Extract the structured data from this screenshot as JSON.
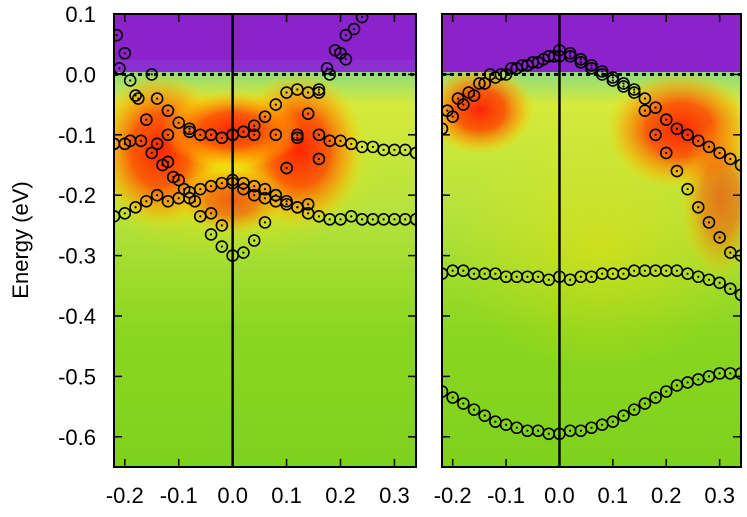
{
  "chart_data": [
    {
      "type": "scatter",
      "panel": "left",
      "ylabel": "Energy (eV)",
      "xlim": [
        -0.22,
        0.34
      ],
      "ylim": [
        -0.65,
        0.1
      ],
      "x_ticks": [
        -0.2,
        -0.1,
        0.0,
        0.1,
        0.2,
        0.3
      ],
      "x_tick_labels": [
        "-0.2",
        "-0.1",
        "0.0",
        "0.1",
        "0.2",
        "0.3"
      ],
      "y_ticks": [
        0.1,
        0.0,
        -0.1,
        -0.2,
        -0.3,
        -0.4,
        -0.5,
        -0.6
      ],
      "y_tick_labels": [
        "0.1",
        "0.0",
        "-0.1",
        "-0.2",
        "-0.3",
        "-0.4",
        "-0.5",
        "-0.6"
      ],
      "reference_lines": {
        "vertical_x": 0.0,
        "fermi_level_y": 0.0,
        "fermi_style": "dotted"
      },
      "background": "spectral intensity map: purple above 0.0 eV, red/orange high-intensity regions near -0.03 to -0.25 eV, yellow-green elsewhere",
      "series": [
        {
          "values": [
            [
              -0.215,
              0.065
            ],
            [
              -0.2,
              0.035
            ],
            [
              -0.18,
              -0.035
            ],
            [
              -0.16,
              -0.075
            ],
            [
              -0.14,
              -0.115
            ],
            [
              -0.12,
              -0.145
            ],
            [
              -0.1,
              -0.175
            ],
            [
              -0.08,
              -0.205
            ],
            [
              -0.06,
              -0.235
            ],
            [
              -0.04,
              -0.265
            ],
            [
              -0.02,
              -0.285
            ],
            [
              0.0,
              -0.3
            ],
            [
              0.02,
              -0.295
            ],
            [
              0.04,
              -0.275
            ],
            [
              0.06,
              -0.245
            ],
            [
              0.08,
              -0.2
            ],
            [
              0.1,
              -0.155
            ],
            [
              0.12,
              -0.105
            ],
            [
              0.14,
              -0.065
            ],
            [
              0.16,
              -0.03
            ],
            [
              0.175,
              0.01
            ],
            [
              0.19,
              0.04
            ],
            [
              0.21,
              0.065
            ],
            [
              0.225,
              0.075
            ],
            [
              0.24,
              0.095
            ]
          ]
        },
        {
          "values": [
            [
              -0.21,
              0.01
            ],
            [
              -0.19,
              -0.01
            ],
            [
              -0.175,
              -0.04
            ],
            [
              -0.15,
              0.0
            ],
            [
              -0.14,
              -0.04
            ],
            [
              -0.12,
              -0.06
            ],
            [
              -0.1,
              -0.08
            ],
            [
              -0.08,
              -0.09
            ],
            [
              -0.06,
              -0.1
            ],
            [
              -0.04,
              -0.1
            ],
            [
              -0.02,
              -0.105
            ],
            [
              0.0,
              -0.1
            ],
            [
              0.02,
              -0.095
            ],
            [
              0.04,
              -0.085
            ],
            [
              0.06,
              -0.07
            ],
            [
              0.08,
              -0.05
            ],
            [
              0.1,
              -0.03
            ],
            [
              0.12,
              -0.025
            ],
            [
              0.14,
              -0.03
            ],
            [
              0.16,
              -0.025
            ],
            [
              0.18,
              0.0
            ],
            [
              0.2,
              0.035
            ],
            [
              0.21,
              0.025
            ]
          ]
        },
        {
          "values": [
            [
              -0.22,
              -0.115
            ],
            [
              -0.2,
              -0.115
            ],
            [
              -0.19,
              -0.11
            ],
            [
              -0.17,
              -0.11
            ],
            [
              -0.15,
              -0.13
            ],
            [
              -0.13,
              -0.15
            ],
            [
              -0.11,
              -0.17
            ],
            [
              -0.09,
              -0.19
            ],
            [
              -0.07,
              -0.21
            ],
            [
              -0.04,
              -0.23
            ],
            [
              -0.02,
              -0.25
            ],
            [
              0.0,
              -0.18
            ],
            [
              0.02,
              -0.19
            ],
            [
              0.04,
              -0.2
            ],
            [
              0.06,
              -0.205
            ],
            [
              0.08,
              -0.21
            ],
            [
              0.1,
              -0.215
            ],
            [
              0.12,
              -0.22
            ],
            [
              0.14,
              -0.215
            ],
            [
              0.16,
              -0.14
            ],
            [
              0.18,
              -0.11
            ],
            [
              0.2,
              -0.11
            ],
            [
              0.22,
              -0.115
            ],
            [
              0.24,
              -0.12
            ],
            [
              0.26,
              -0.12
            ],
            [
              0.28,
              -0.125
            ],
            [
              0.3,
              -0.125
            ],
            [
              0.32,
              -0.125
            ],
            [
              0.34,
              -0.13
            ]
          ]
        },
        {
          "values": [
            [
              -0.22,
              -0.235
            ],
            [
              -0.2,
              -0.23
            ],
            [
              -0.18,
              -0.22
            ],
            [
              -0.16,
              -0.21
            ],
            [
              -0.14,
              -0.2
            ],
            [
              -0.12,
              -0.21
            ],
            [
              -0.1,
              -0.205
            ],
            [
              -0.08,
              -0.195
            ],
            [
              -0.06,
              -0.19
            ],
            [
              -0.04,
              -0.185
            ],
            [
              -0.02,
              -0.18
            ],
            [
              0.0,
              -0.175
            ],
            [
              0.02,
              -0.18
            ],
            [
              0.04,
              -0.185
            ],
            [
              0.06,
              -0.19
            ],
            [
              0.08,
              -0.2
            ],
            [
              0.1,
              -0.21
            ],
            [
              0.12,
              -0.22
            ],
            [
              0.14,
              -0.23
            ],
            [
              0.16,
              -0.235
            ],
            [
              0.18,
              -0.24
            ],
            [
              0.2,
              -0.24
            ],
            [
              0.22,
              -0.235
            ],
            [
              0.24,
              -0.24
            ],
            [
              0.26,
              -0.24
            ],
            [
              0.28,
              -0.24
            ],
            [
              0.3,
              -0.24
            ],
            [
              0.32,
              -0.24
            ],
            [
              0.34,
              -0.24
            ]
          ]
        },
        {
          "values": [
            [
              -0.12,
              -0.1
            ],
            [
              -0.08,
              -0.095
            ],
            [
              -0.04,
              -0.1
            ],
            [
              0.0,
              -0.1
            ],
            [
              0.04,
              -0.1
            ],
            [
              0.08,
              -0.1
            ],
            [
              0.12,
              -0.1
            ],
            [
              0.16,
              -0.1
            ]
          ]
        }
      ]
    },
    {
      "type": "scatter",
      "panel": "right",
      "xlim": [
        -0.22,
        0.34
      ],
      "ylim": [
        -0.65,
        0.1
      ],
      "x_ticks": [
        -0.2,
        -0.1,
        0.0,
        0.1,
        0.2,
        0.3
      ],
      "x_tick_labels": [
        "-0.2",
        "-0.1",
        "0.0",
        "0.1",
        "0.2",
        "0.3"
      ],
      "reference_lines": {
        "vertical_x": 0.0,
        "fermi_level_y": 0.0,
        "fermi_style": "dotted"
      },
      "background": "spectral intensity map: purple above 0.0 eV, red/orange high-intensity bands near the Fermi level edges, yellow-green elsewhere",
      "series": [
        {
          "values": [
            [
              -0.21,
              -0.06
            ],
            [
              -0.19,
              -0.04
            ],
            [
              -0.17,
              -0.03
            ],
            [
              -0.15,
              -0.015
            ],
            [
              -0.13,
              0.0
            ],
            [
              -0.11,
              0.0
            ],
            [
              -0.09,
              0.01
            ],
            [
              -0.07,
              0.015
            ],
            [
              -0.05,
              0.02
            ],
            [
              -0.03,
              0.025
            ],
            [
              -0.01,
              0.03
            ],
            [
              0.0,
              0.03
            ],
            [
              0.02,
              0.03
            ],
            [
              0.04,
              0.025
            ],
            [
              0.06,
              0.015
            ],
            [
              0.08,
              0.005
            ],
            [
              0.1,
              -0.005
            ],
            [
              0.12,
              -0.015
            ],
            [
              0.14,
              -0.025
            ],
            [
              0.16,
              -0.04
            ],
            [
              0.18,
              -0.055
            ],
            [
              0.2,
              -0.075
            ],
            [
              0.22,
              -0.09
            ],
            [
              0.24,
              -0.1
            ],
            [
              0.26,
              -0.11
            ],
            [
              0.28,
              -0.12
            ],
            [
              0.3,
              -0.13
            ],
            [
              0.32,
              -0.14
            ],
            [
              0.34,
              -0.15
            ]
          ]
        },
        {
          "values": [
            [
              -0.22,
              -0.09
            ],
            [
              -0.2,
              -0.07
            ],
            [
              -0.18,
              -0.05
            ],
            [
              -0.16,
              -0.035
            ],
            [
              -0.14,
              -0.015
            ],
            [
              -0.12,
              -0.005
            ],
            [
              -0.1,
              0.0
            ],
            [
              -0.08,
              0.01
            ],
            [
              -0.06,
              0.015
            ],
            [
              -0.04,
              0.02
            ],
            [
              -0.02,
              0.03
            ],
            [
              0.0,
              0.04
            ],
            [
              0.02,
              0.035
            ],
            [
              0.04,
              0.02
            ],
            [
              0.06,
              0.01
            ],
            [
              0.08,
              0.0
            ],
            [
              0.1,
              -0.01
            ],
            [
              0.12,
              -0.02
            ],
            [
              0.14,
              -0.03
            ],
            [
              0.16,
              -0.06
            ],
            [
              0.18,
              -0.1
            ],
            [
              0.2,
              -0.13
            ],
            [
              0.22,
              -0.16
            ],
            [
              0.24,
              -0.19
            ],
            [
              0.26,
              -0.22
            ],
            [
              0.28,
              -0.245
            ],
            [
              0.3,
              -0.27
            ],
            [
              0.32,
              -0.295
            ],
            [
              0.34,
              -0.3
            ]
          ]
        },
        {
          "values": [
            [
              -0.22,
              -0.33
            ],
            [
              -0.2,
              -0.325
            ],
            [
              -0.18,
              -0.325
            ],
            [
              -0.16,
              -0.33
            ],
            [
              -0.14,
              -0.33
            ],
            [
              -0.12,
              -0.33
            ],
            [
              -0.1,
              -0.335
            ],
            [
              -0.08,
              -0.335
            ],
            [
              -0.06,
              -0.335
            ],
            [
              -0.04,
              -0.335
            ],
            [
              -0.02,
              -0.34
            ],
            [
              0.0,
              -0.335
            ],
            [
              0.02,
              -0.34
            ],
            [
              0.04,
              -0.335
            ],
            [
              0.06,
              -0.335
            ],
            [
              0.08,
              -0.33
            ],
            [
              0.1,
              -0.33
            ],
            [
              0.12,
              -0.33
            ],
            [
              0.14,
              -0.325
            ],
            [
              0.16,
              -0.325
            ],
            [
              0.18,
              -0.325
            ],
            [
              0.2,
              -0.325
            ],
            [
              0.22,
              -0.325
            ],
            [
              0.24,
              -0.33
            ],
            [
              0.26,
              -0.335
            ],
            [
              0.28,
              -0.34
            ],
            [
              0.3,
              -0.345
            ],
            [
              0.32,
              -0.355
            ],
            [
              0.34,
              -0.365
            ]
          ]
        },
        {
          "values": [
            [
              -0.22,
              -0.525
            ],
            [
              -0.2,
              -0.535
            ],
            [
              -0.18,
              -0.545
            ],
            [
              -0.16,
              -0.555
            ],
            [
              -0.14,
              -0.565
            ],
            [
              -0.12,
              -0.575
            ],
            [
              -0.1,
              -0.58
            ],
            [
              -0.08,
              -0.585
            ],
            [
              -0.06,
              -0.59
            ],
            [
              -0.04,
              -0.59
            ],
            [
              -0.02,
              -0.595
            ],
            [
              0.0,
              -0.595
            ],
            [
              0.02,
              -0.59
            ],
            [
              0.04,
              -0.59
            ],
            [
              0.06,
              -0.585
            ],
            [
              0.08,
              -0.58
            ],
            [
              0.1,
              -0.575
            ],
            [
              0.12,
              -0.565
            ],
            [
              0.14,
              -0.555
            ],
            [
              0.16,
              -0.545
            ],
            [
              0.18,
              -0.535
            ],
            [
              0.2,
              -0.525
            ],
            [
              0.22,
              -0.515
            ],
            [
              0.24,
              -0.51
            ],
            [
              0.26,
              -0.505
            ],
            [
              0.28,
              -0.5
            ],
            [
              0.3,
              -0.495
            ],
            [
              0.32,
              -0.495
            ],
            [
              0.34,
              -0.495
            ]
          ]
        }
      ]
    }
  ]
}
